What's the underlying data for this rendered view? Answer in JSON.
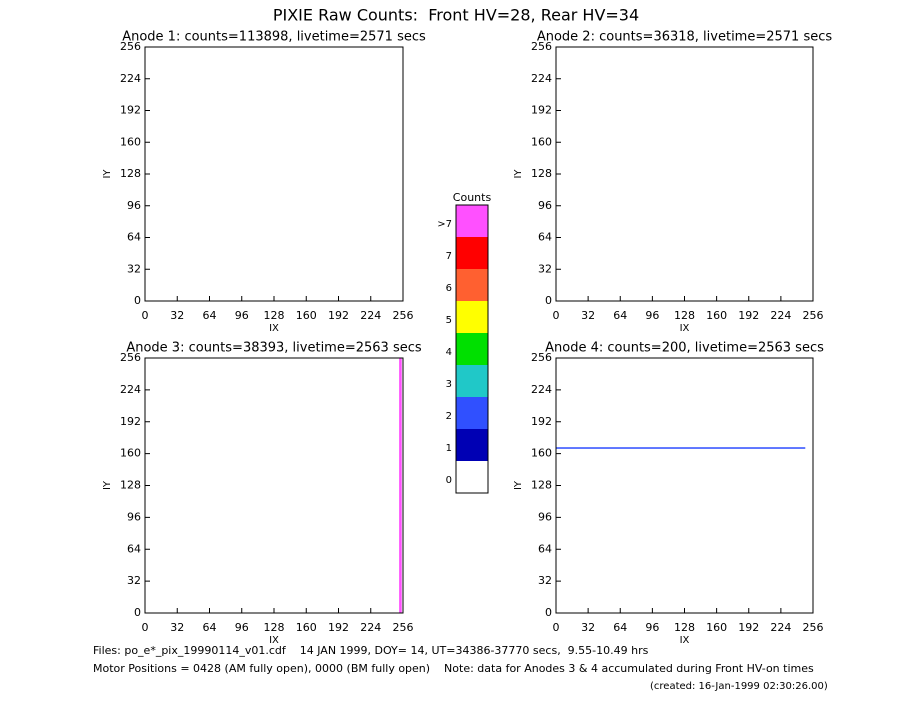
{
  "title": "PIXIE Raw Counts:  Front HV=28, Rear HV=34",
  "chart_data": [
    {
      "type": "heatmap",
      "title": "Anode 1: counts=113898, livetime=2571 secs",
      "xlabel": "IX",
      "ylabel": "IY",
      "xlim": [
        0,
        256
      ],
      "ylim": [
        0,
        256
      ],
      "xticks": [
        0,
        32,
        64,
        96,
        128,
        160,
        192,
        224,
        256
      ],
      "yticks": [
        0,
        32,
        64,
        96,
        128,
        160,
        192,
        224,
        256
      ]
    },
    {
      "type": "heatmap",
      "title": "Anode 2: counts=36318, livetime=2571 secs",
      "xlabel": "IX",
      "ylabel": "IY",
      "xlim": [
        0,
        256
      ],
      "ylim": [
        0,
        256
      ],
      "xticks": [
        0,
        32,
        64,
        96,
        128,
        160,
        192,
        224,
        256
      ],
      "yticks": [
        0,
        32,
        64,
        96,
        128,
        160,
        192,
        224,
        256
      ]
    },
    {
      "type": "heatmap",
      "title": "Anode 3: counts=38393, livetime=2563 secs",
      "xlabel": "IX",
      "ylabel": "IY",
      "xlim": [
        0,
        256
      ],
      "ylim": [
        0,
        256
      ],
      "xticks": [
        0,
        32,
        64,
        96,
        128,
        160,
        192,
        224,
        256
      ],
      "yticks": [
        0,
        32,
        64,
        96,
        128,
        160,
        192,
        224,
        256
      ]
    },
    {
      "type": "heatmap",
      "title": "Anode 4: counts=200, livetime=2563 secs",
      "xlabel": "IX",
      "ylabel": "IY",
      "xlim": [
        0,
        256
      ],
      "ylim": [
        0,
        256
      ],
      "xticks": [
        0,
        32,
        64,
        96,
        128,
        160,
        192,
        224,
        256
      ],
      "yticks": [
        0,
        32,
        64,
        96,
        128,
        160,
        192,
        224,
        256
      ]
    }
  ],
  "colorbar": {
    "title": "Counts",
    "labels": [
      "0",
      "1",
      "2",
      "3",
      "4",
      "5",
      "6",
      "7",
      ">7"
    ],
    "colors": [
      "#ffffff",
      "#0000b4",
      "#3050ff",
      "#20c8c8",
      "#00e000",
      "#ffff00",
      "#ff6030",
      "#ff0000",
      "#ff50ff"
    ]
  },
  "footer": {
    "files": "Files: po_e*_pix_19990114_v01.cdf    14 JAN 1999, DOY= 14, UT=34386-37770 secs,  9.55-10.49 hrs",
    "motor": "Motor Positions = 0428 (AM fully open), 0000 (BM fully open)    Note: data for Anodes 3 & 4 accumulated during Front HV-on times",
    "created": "(created: 16-Jan-1999 02:30:26.00)"
  }
}
